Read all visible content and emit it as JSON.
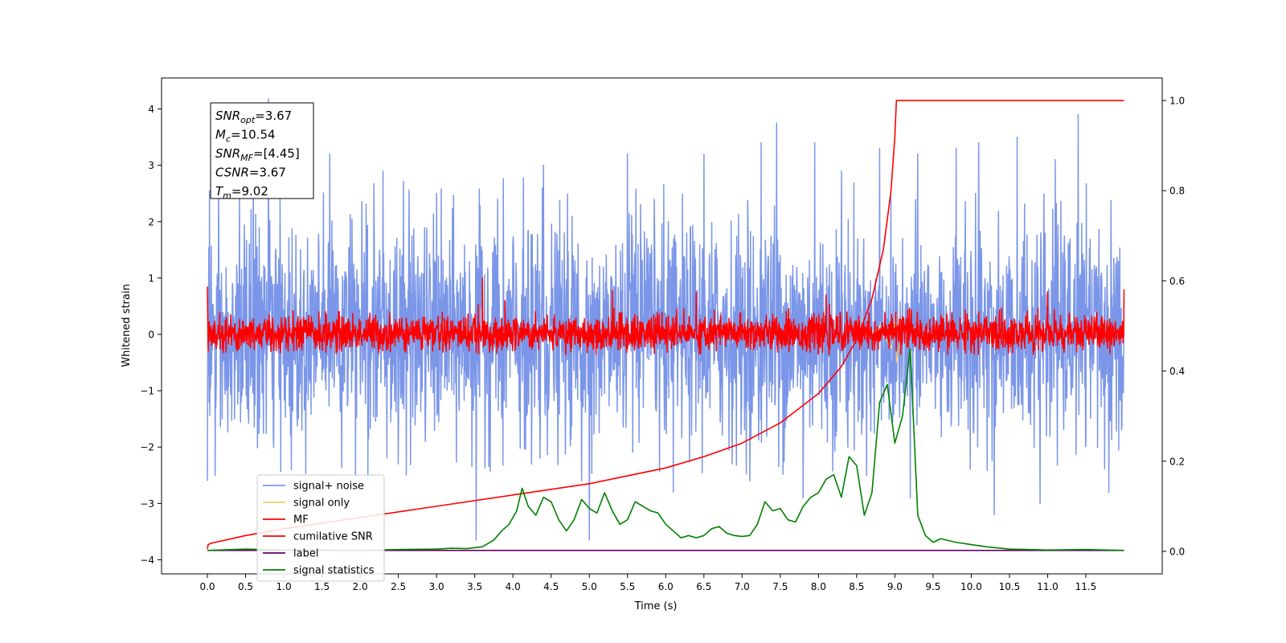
{
  "chart_data": {
    "type": "line",
    "xlabel": "Time (s)",
    "ylabel": "Whitened strain",
    "xlim": [
      -0.6,
      12.5
    ],
    "ylim_left": [
      -4.25,
      4.55
    ],
    "ylim_right": [
      -0.05,
      1.05
    ],
    "x_ticks": [
      0.0,
      0.5,
      1.0,
      1.5,
      2.0,
      2.5,
      3.0,
      3.5,
      4.0,
      4.5,
      5.0,
      5.5,
      6.0,
      6.5,
      7.0,
      7.5,
      8.0,
      8.5,
      9.0,
      9.5,
      10.0,
      10.5,
      11.0,
      11.5
    ],
    "x_tick_labels": [
      "0.0",
      "0.5",
      "1.0",
      "1.5",
      "2.0",
      "2.5",
      "3.0",
      "3.5",
      "4.0",
      "4.5",
      "5.0",
      "5.5",
      "6.0",
      "6.5",
      "7.0",
      "7.5",
      "8.0",
      "8.5",
      "9.0",
      "9.5",
      "10.0",
      "10.5",
      "11.0",
      "11.5"
    ],
    "y_left_ticks": [
      -4,
      -3,
      -2,
      -1,
      0,
      1,
      2,
      3,
      4
    ],
    "y_left_tick_labels": [
      "−4",
      "−3",
      "−2",
      "−1",
      "0",
      "1",
      "2",
      "3",
      "4"
    ],
    "y_right_ticks": [
      0.0,
      0.2,
      0.4,
      0.6,
      0.8,
      1.0
    ],
    "y_right_tick_labels": [
      "0.0",
      "0.2",
      "0.4",
      "0.6",
      "0.8",
      "1.0"
    ],
    "annotation": {
      "lines": [
        {
          "name": "SNR",
          "sub": "opt",
          "value": "=3.67"
        },
        {
          "name": "M",
          "sub": "c",
          "value": "=10.54"
        },
        {
          "name": "SNR",
          "sub": "MF",
          "value": "=[4.45]"
        },
        {
          "name": "CSNR",
          "sub": "",
          "value": "=3.67"
        },
        {
          "name": "T",
          "sub": "m",
          "value": "=9.02"
        }
      ]
    },
    "legend_position": "lower-left",
    "legend": [
      {
        "label": "signal+ noise",
        "color": "#7b96e8"
      },
      {
        "label": "signal only",
        "color": "#f7c96b"
      },
      {
        "label": "MF",
        "color": "#ff0000"
      },
      {
        "label": "cumilative SNR",
        "color": "#ff0000"
      },
      {
        "label": "label",
        "color": "#6b006b"
      },
      {
        "label": "signal statistics",
        "color": "#008000"
      }
    ],
    "series": [
      {
        "label": "signal+ noise",
        "axis": "left",
        "color": "#7b96e8",
        "x_range": [
          0.0,
          12.0
        ],
        "envelope_typical": [
          -1.9,
          2.0
        ],
        "spikes": [
          [
            0.0,
            -2.6
          ],
          [
            0.03,
            2.55
          ],
          [
            0.8,
            4.18
          ],
          [
            0.1,
            -2.5
          ],
          [
            0.6,
            3.1
          ],
          [
            1.1,
            -2.4
          ],
          [
            1.6,
            3.2
          ],
          [
            2.1,
            -2.6
          ],
          [
            2.3,
            2.9
          ],
          [
            2.5,
            -2.3
          ],
          [
            3.0,
            2.5
          ],
          [
            3.52,
            -3.65
          ],
          [
            3.8,
            2.4
          ],
          [
            4.4,
            3.0
          ],
          [
            4.9,
            -2.6
          ],
          [
            5.0,
            -3.65
          ],
          [
            5.5,
            3.2
          ],
          [
            6.1,
            -2.8
          ],
          [
            6.5,
            3.2
          ],
          [
            7.1,
            -2.6
          ],
          [
            7.25,
            3.4
          ],
          [
            7.45,
            3.75
          ],
          [
            7.8,
            -2.9
          ],
          [
            7.95,
            3.4
          ],
          [
            8.3,
            2.9
          ],
          [
            8.8,
            3.3
          ],
          [
            9.2,
            -2.9
          ],
          [
            9.3,
            3.2
          ],
          [
            9.8,
            3.3
          ],
          [
            10.1,
            3.4
          ],
          [
            10.3,
            -3.2
          ],
          [
            10.6,
            3.5
          ],
          [
            10.9,
            -3.0
          ],
          [
            11.1,
            3.1
          ],
          [
            11.4,
            3.9
          ],
          [
            11.8,
            -2.8
          ]
        ]
      },
      {
        "label": "signal only",
        "axis": "left",
        "color": "#f7c96b",
        "points": [
          [
            8.6,
            -0.05
          ],
          [
            8.8,
            0.12
          ],
          [
            8.95,
            -0.25
          ],
          [
            9.02,
            0.37
          ],
          [
            9.02,
            -0.5
          ],
          [
            9.1,
            0.1
          ],
          [
            9.2,
            0.0
          ]
        ]
      },
      {
        "label": "MF",
        "axis": "left",
        "color": "#ff0000",
        "x_range": [
          0.0,
          12.0
        ],
        "envelope_typical": [
          -0.35,
          0.65
        ],
        "spikes": [
          [
            0.0,
            0.85
          ],
          [
            3.6,
            1.0
          ],
          [
            0.01,
            -0.3
          ],
          [
            5.3,
            0.78
          ],
          [
            6.4,
            0.75
          ],
          [
            8.1,
            0.7
          ],
          [
            11.0,
            0.75
          ],
          [
            12.0,
            0.8
          ]
        ]
      },
      {
        "label": "cumilative SNR",
        "axis": "right",
        "color": "#ff0000",
        "x": [
          0.0,
          0.01,
          0.05,
          0.5,
          1.0,
          2.0,
          3.0,
          4.0,
          5.0,
          6.0,
          6.5,
          7.0,
          7.5,
          8.0,
          8.3,
          8.5,
          8.7,
          8.85,
          8.95,
          9.0,
          9.02,
          10.0,
          11.0,
          12.0
        ],
        "y": [
          0.005,
          0.015,
          0.018,
          0.035,
          0.05,
          0.075,
          0.1,
          0.125,
          0.15,
          0.185,
          0.21,
          0.24,
          0.285,
          0.35,
          0.41,
          0.47,
          0.56,
          0.67,
          0.8,
          0.92,
          1.0,
          1.0,
          1.0,
          1.0
        ]
      },
      {
        "label": "label",
        "axis": "right",
        "color": "#6b006b",
        "x": [
          0.0,
          12.0
        ],
        "y": [
          0.002,
          0.002
        ]
      },
      {
        "label": "signal statistics",
        "axis": "right",
        "color": "#008000",
        "x": [
          0.0,
          0.5,
          1.0,
          1.5,
          2.0,
          2.5,
          3.0,
          3.2,
          3.4,
          3.6,
          3.75,
          3.85,
          3.95,
          4.05,
          4.12,
          4.2,
          4.3,
          4.4,
          4.5,
          4.6,
          4.7,
          4.8,
          4.9,
          5.0,
          5.1,
          5.2,
          5.3,
          5.4,
          5.5,
          5.6,
          5.7,
          5.8,
          5.9,
          6.0,
          6.1,
          6.2,
          6.3,
          6.4,
          6.5,
          6.6,
          6.7,
          6.8,
          6.9,
          7.0,
          7.1,
          7.2,
          7.3,
          7.4,
          7.5,
          7.6,
          7.7,
          7.8,
          7.9,
          8.0,
          8.1,
          8.2,
          8.3,
          8.4,
          8.5,
          8.6,
          8.7,
          8.8,
          8.9,
          9.0,
          9.1,
          9.2,
          9.3,
          9.4,
          9.5,
          9.6,
          9.8,
          10.0,
          10.2,
          10.5,
          11.0,
          11.5,
          12.0
        ],
        "y": [
          0.002,
          0.005,
          0.003,
          0.003,
          0.002,
          0.004,
          0.005,
          0.007,
          0.006,
          0.01,
          0.025,
          0.045,
          0.06,
          0.09,
          0.14,
          0.1,
          0.08,
          0.12,
          0.11,
          0.07,
          0.045,
          0.07,
          0.115,
          0.095,
          0.085,
          0.13,
          0.09,
          0.06,
          0.07,
          0.11,
          0.1,
          0.09,
          0.085,
          0.06,
          0.045,
          0.03,
          0.035,
          0.03,
          0.035,
          0.05,
          0.055,
          0.04,
          0.035,
          0.033,
          0.035,
          0.06,
          0.11,
          0.09,
          0.095,
          0.07,
          0.065,
          0.1,
          0.12,
          0.13,
          0.16,
          0.17,
          0.12,
          0.21,
          0.19,
          0.08,
          0.13,
          0.33,
          0.37,
          0.24,
          0.3,
          0.45,
          0.08,
          0.035,
          0.02,
          0.028,
          0.02,
          0.015,
          0.01,
          0.005,
          0.003,
          0.004,
          0.002
        ]
      }
    ]
  }
}
